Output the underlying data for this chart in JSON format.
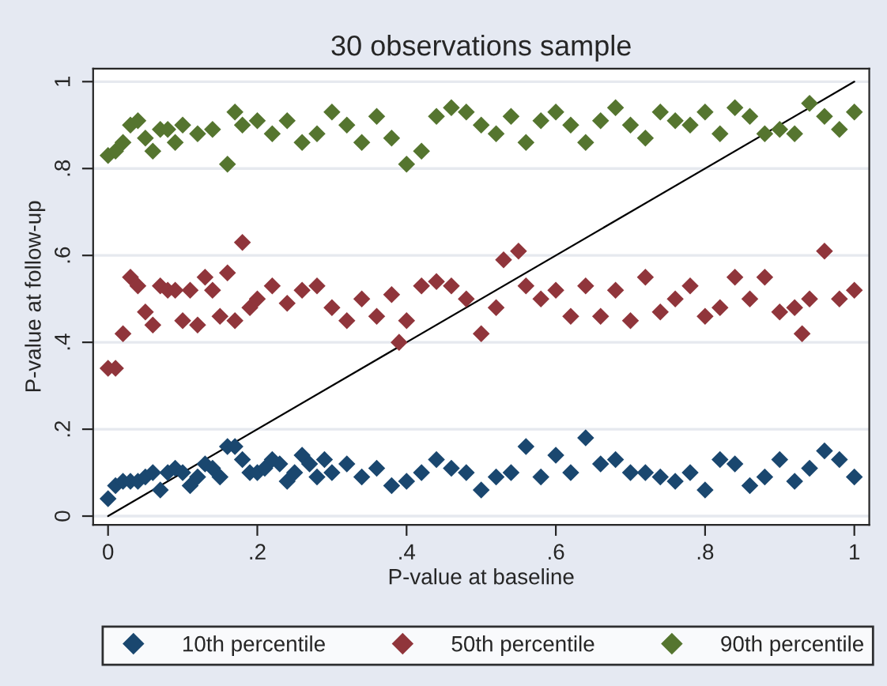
{
  "chart_data": {
    "type": "scatter",
    "title": "30 observations sample",
    "xlabel": "P-value at baseline",
    "ylabel": "P-value at follow-up",
    "xlim": [
      -0.02,
      1.02
    ],
    "ylim": [
      -0.02,
      1.03
    ],
    "xticks": [
      0,
      {
        "value": 0.2,
        "label": ".2"
      },
      {
        "value": 0.4,
        "label": ".4"
      },
      {
        "value": 0.6,
        "label": ".6"
      },
      {
        "value": 0.8,
        "label": ".8"
      },
      1
    ],
    "yticks": [
      0,
      {
        "value": 0.2,
        "label": ".2"
      },
      {
        "value": 0.4,
        "label": ".4"
      },
      {
        "value": 0.6,
        "label": ".6"
      },
      {
        "value": 0.8,
        "label": ".8"
      },
      1
    ],
    "grid": "y",
    "legend": "bottom",
    "marker": "diamond",
    "series": [
      {
        "name": "10th percentile",
        "color": "#1a476f",
        "x": [
          0,
          0.01,
          0.02,
          0.03,
          0.04,
          0.05,
          0.06,
          0.07,
          0.08,
          0.09,
          0.1,
          0.11,
          0.12,
          0.13,
          0.14,
          0.15,
          0.16,
          0.17,
          0.18,
          0.19,
          0.2,
          0.21,
          0.22,
          0.23,
          0.24,
          0.25,
          0.26,
          0.27,
          0.28,
          0.29,
          0.3,
          0.32,
          0.34,
          0.36,
          0.38,
          0.4,
          0.42,
          0.44,
          0.46,
          0.48,
          0.5,
          0.52,
          0.54,
          0.56,
          0.58,
          0.6,
          0.62,
          0.64,
          0.66,
          0.68,
          0.7,
          0.72,
          0.74,
          0.76,
          0.78,
          0.8,
          0.82,
          0.84,
          0.86,
          0.88,
          0.9,
          0.92,
          0.94,
          0.96,
          0.98,
          1.0
        ],
        "values": [
          0.04,
          0.07,
          0.08,
          0.08,
          0.08,
          0.09,
          0.1,
          0.06,
          0.1,
          0.11,
          0.1,
          0.07,
          0.09,
          0.12,
          0.11,
          0.09,
          0.16,
          0.16,
          0.13,
          0.1,
          0.1,
          0.11,
          0.13,
          0.12,
          0.08,
          0.1,
          0.14,
          0.12,
          0.09,
          0.13,
          0.1,
          0.12,
          0.09,
          0.11,
          0.07,
          0.08,
          0.1,
          0.13,
          0.11,
          0.1,
          0.06,
          0.09,
          0.1,
          0.16,
          0.09,
          0.14,
          0.1,
          0.18,
          0.12,
          0.13,
          0.1,
          0.1,
          0.09,
          0.08,
          0.1,
          0.06,
          0.13,
          0.12,
          0.07,
          0.09,
          0.13,
          0.08,
          0.11,
          0.15,
          0.13,
          0.09
        ]
      },
      {
        "name": "50th percentile",
        "color": "#90353b",
        "x": [
          0,
          0.01,
          0.02,
          0.03,
          0.04,
          0.05,
          0.06,
          0.07,
          0.08,
          0.09,
          0.1,
          0.11,
          0.12,
          0.13,
          0.14,
          0.15,
          0.16,
          0.17,
          0.18,
          0.19,
          0.2,
          0.22,
          0.24,
          0.26,
          0.28,
          0.3,
          0.32,
          0.34,
          0.36,
          0.38,
          0.39,
          0.4,
          0.42,
          0.44,
          0.46,
          0.48,
          0.5,
          0.52,
          0.53,
          0.55,
          0.56,
          0.58,
          0.6,
          0.62,
          0.64,
          0.66,
          0.68,
          0.7,
          0.72,
          0.74,
          0.76,
          0.78,
          0.8,
          0.82,
          0.84,
          0.86,
          0.88,
          0.9,
          0.92,
          0.93,
          0.94,
          0.96,
          0.98,
          1.0
        ],
        "values": [
          0.34,
          0.34,
          0.42,
          0.55,
          0.53,
          0.47,
          0.44,
          0.53,
          0.52,
          0.52,
          0.45,
          0.52,
          0.44,
          0.55,
          0.52,
          0.46,
          0.56,
          0.45,
          0.63,
          0.48,
          0.5,
          0.53,
          0.49,
          0.52,
          0.53,
          0.48,
          0.45,
          0.5,
          0.46,
          0.51,
          0.4,
          0.45,
          0.53,
          0.54,
          0.53,
          0.5,
          0.42,
          0.48,
          0.59,
          0.61,
          0.53,
          0.5,
          0.52,
          0.46,
          0.53,
          0.46,
          0.52,
          0.45,
          0.55,
          0.47,
          0.5,
          0.53,
          0.46,
          0.48,
          0.55,
          0.5,
          0.55,
          0.47,
          0.48,
          0.42,
          0.5,
          0.61,
          0.5,
          0.52
        ]
      },
      {
        "name": "90th percentile",
        "color": "#55752f",
        "x": [
          0,
          0.01,
          0.02,
          0.03,
          0.04,
          0.05,
          0.06,
          0.07,
          0.08,
          0.09,
          0.1,
          0.12,
          0.14,
          0.16,
          0.17,
          0.18,
          0.2,
          0.22,
          0.24,
          0.26,
          0.28,
          0.3,
          0.32,
          0.34,
          0.36,
          0.38,
          0.4,
          0.42,
          0.44,
          0.46,
          0.48,
          0.5,
          0.52,
          0.54,
          0.56,
          0.58,
          0.6,
          0.62,
          0.64,
          0.66,
          0.68,
          0.7,
          0.72,
          0.74,
          0.76,
          0.78,
          0.8,
          0.82,
          0.84,
          0.86,
          0.88,
          0.9,
          0.92,
          0.94,
          0.96,
          0.98,
          1.0
        ],
        "values": [
          0.83,
          0.84,
          0.86,
          0.9,
          0.91,
          0.87,
          0.84,
          0.89,
          0.89,
          0.86,
          0.9,
          0.88,
          0.89,
          0.81,
          0.93,
          0.9,
          0.91,
          0.88,
          0.91,
          0.86,
          0.88,
          0.93,
          0.9,
          0.86,
          0.92,
          0.87,
          0.81,
          0.84,
          0.92,
          0.94,
          0.93,
          0.9,
          0.88,
          0.92,
          0.86,
          0.91,
          0.93,
          0.9,
          0.86,
          0.91,
          0.94,
          0.9,
          0.87,
          0.93,
          0.91,
          0.9,
          0.93,
          0.88,
          0.94,
          0.92,
          0.88,
          0.89,
          0.88,
          0.95,
          0.92,
          0.89,
          0.93
        ]
      },
      {
        "type": "line",
        "marker": "none",
        "color": "#000000",
        "x": [
          0,
          1
        ],
        "values": [
          0,
          1
        ]
      }
    ]
  }
}
